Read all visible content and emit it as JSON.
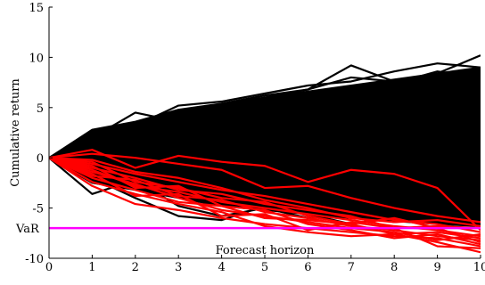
{
  "chart_data": {
    "type": "line",
    "title": "",
    "xlabel": "Forecast horizon",
    "ylabel": "Cumulative return",
    "x": [
      0,
      1,
      2,
      3,
      4,
      5,
      6,
      7,
      8,
      9,
      10
    ],
    "xlim": [
      0,
      10
    ],
    "ylim": [
      -10,
      15
    ],
    "xticks": [
      "0",
      "1",
      "2",
      "3",
      "4",
      "5",
      "6",
      "7",
      "8",
      "9",
      "10"
    ],
    "yticks": [
      "-10",
      "-5",
      "0",
      "5",
      "10",
      "15"
    ],
    "grid": false,
    "legend": "none",
    "colors": {
      "paths": "#000000",
      "tail_paths": "#ff0000",
      "var_line": "#ff00ff"
    },
    "black_band": {
      "upper": [
        0,
        2.8,
        3.6,
        4.8,
        5.4,
        6.0,
        6.6,
        7.2,
        7.8,
        8.4,
        9.0
      ],
      "lower": [
        0,
        -2.5,
        -3.2,
        -4.0,
        -4.8,
        -5.2,
        -5.6,
        -6.0,
        -6.3,
        -6.6,
        -6.8
      ]
    },
    "series_black": [
      {
        "values": [
          0,
          2.0,
          4.5,
          3.6,
          5.0,
          6.0,
          6.8,
          9.2,
          7.6,
          8.4,
          10.2
        ]
      },
      {
        "values": [
          0,
          2.6,
          3.2,
          5.2,
          5.6,
          6.4,
          7.2,
          7.6,
          8.6,
          9.4,
          9.0
        ]
      },
      {
        "values": [
          0,
          1.6,
          3.0,
          4.0,
          5.4,
          6.2,
          6.8,
          8.0,
          7.6,
          8.0,
          8.6
        ]
      },
      {
        "values": [
          0,
          1.2,
          2.4,
          3.8,
          4.6,
          5.6,
          6.2,
          6.6,
          7.4,
          8.6,
          8.0
        ]
      },
      {
        "values": [
          0,
          -3.6,
          -2.2,
          -4.8,
          -5.8,
          -5.0,
          -6.0,
          -5.6,
          -6.4,
          -6.0,
          -6.6
        ]
      },
      {
        "values": [
          0,
          -2.0,
          -4.0,
          -5.8,
          -6.2,
          -4.8,
          -5.6,
          -6.6,
          -5.8,
          -6.4,
          -6.8
        ]
      }
    ],
    "series_red": [
      {
        "values": [
          0,
          0.8,
          -1.0,
          0.2,
          -0.4,
          -0.8,
          -2.4,
          -1.2,
          -1.6,
          -3.0,
          -7.2
        ]
      },
      {
        "values": [
          0,
          0.4,
          0.0,
          -0.6,
          -1.2,
          -3.0,
          -2.8,
          -4.0,
          -5.0,
          -5.8,
          -6.4
        ]
      },
      {
        "values": [
          0,
          -0.6,
          -1.6,
          -2.4,
          -3.2,
          -3.8,
          -4.6,
          -5.4,
          -6.2,
          -6.6,
          -7.4
        ]
      },
      {
        "values": [
          0,
          -1.2,
          -2.8,
          -3.4,
          -4.4,
          -5.0,
          -5.6,
          -6.2,
          -6.8,
          -7.2,
          -7.8
        ]
      },
      {
        "values": [
          0,
          -1.8,
          -2.2,
          -3.8,
          -4.2,
          -5.4,
          -6.0,
          -6.8,
          -7.2,
          -7.8,
          -8.2
        ]
      },
      {
        "values": [
          0,
          -2.4,
          -3.6,
          -4.6,
          -5.4,
          -6.8,
          -7.4,
          -7.8,
          -7.6,
          -8.4,
          -9.4
        ]
      },
      {
        "values": [
          0,
          -0.8,
          -3.0,
          -2.8,
          -4.8,
          -5.2,
          -6.6,
          -7.2,
          -8.0,
          -7.6,
          -8.6
        ]
      },
      {
        "values": [
          0,
          -1.0,
          -2.0,
          -3.2,
          -3.6,
          -4.6,
          -5.2,
          -5.8,
          -7.0,
          -6.8,
          -7.0
        ]
      },
      {
        "values": [
          0,
          -2.8,
          -4.6,
          -5.2,
          -6.0,
          -6.6,
          -7.0,
          -7.4,
          -7.8,
          -8.0,
          -8.8
        ]
      },
      {
        "values": [
          0,
          -1.4,
          -2.6,
          -4.0,
          -5.2,
          -5.8,
          -6.4,
          -7.0,
          -7.4,
          -8.2,
          -7.6
        ]
      },
      {
        "values": [
          0,
          -0.2,
          -1.4,
          -2.0,
          -3.0,
          -4.2,
          -5.0,
          -6.0,
          -6.4,
          -6.2,
          -6.8
        ]
      },
      {
        "values": [
          0,
          -2.0,
          -3.2,
          -4.4,
          -4.8,
          -6.0,
          -6.2,
          -6.6,
          -7.6,
          -7.4,
          -8.0
        ]
      },
      {
        "values": [
          0,
          -1.6,
          -3.8,
          -3.6,
          -5.8,
          -5.6,
          -7.2,
          -6.4,
          -7.0,
          -8.8,
          -9.0
        ]
      },
      {
        "values": [
          0,
          -0.4,
          -2.4,
          -3.0,
          -4.0,
          -4.4,
          -5.8,
          -6.6,
          -6.0,
          -7.0,
          -8.4
        ]
      }
    ],
    "var": {
      "label": "VaR",
      "value": -7.0
    }
  }
}
